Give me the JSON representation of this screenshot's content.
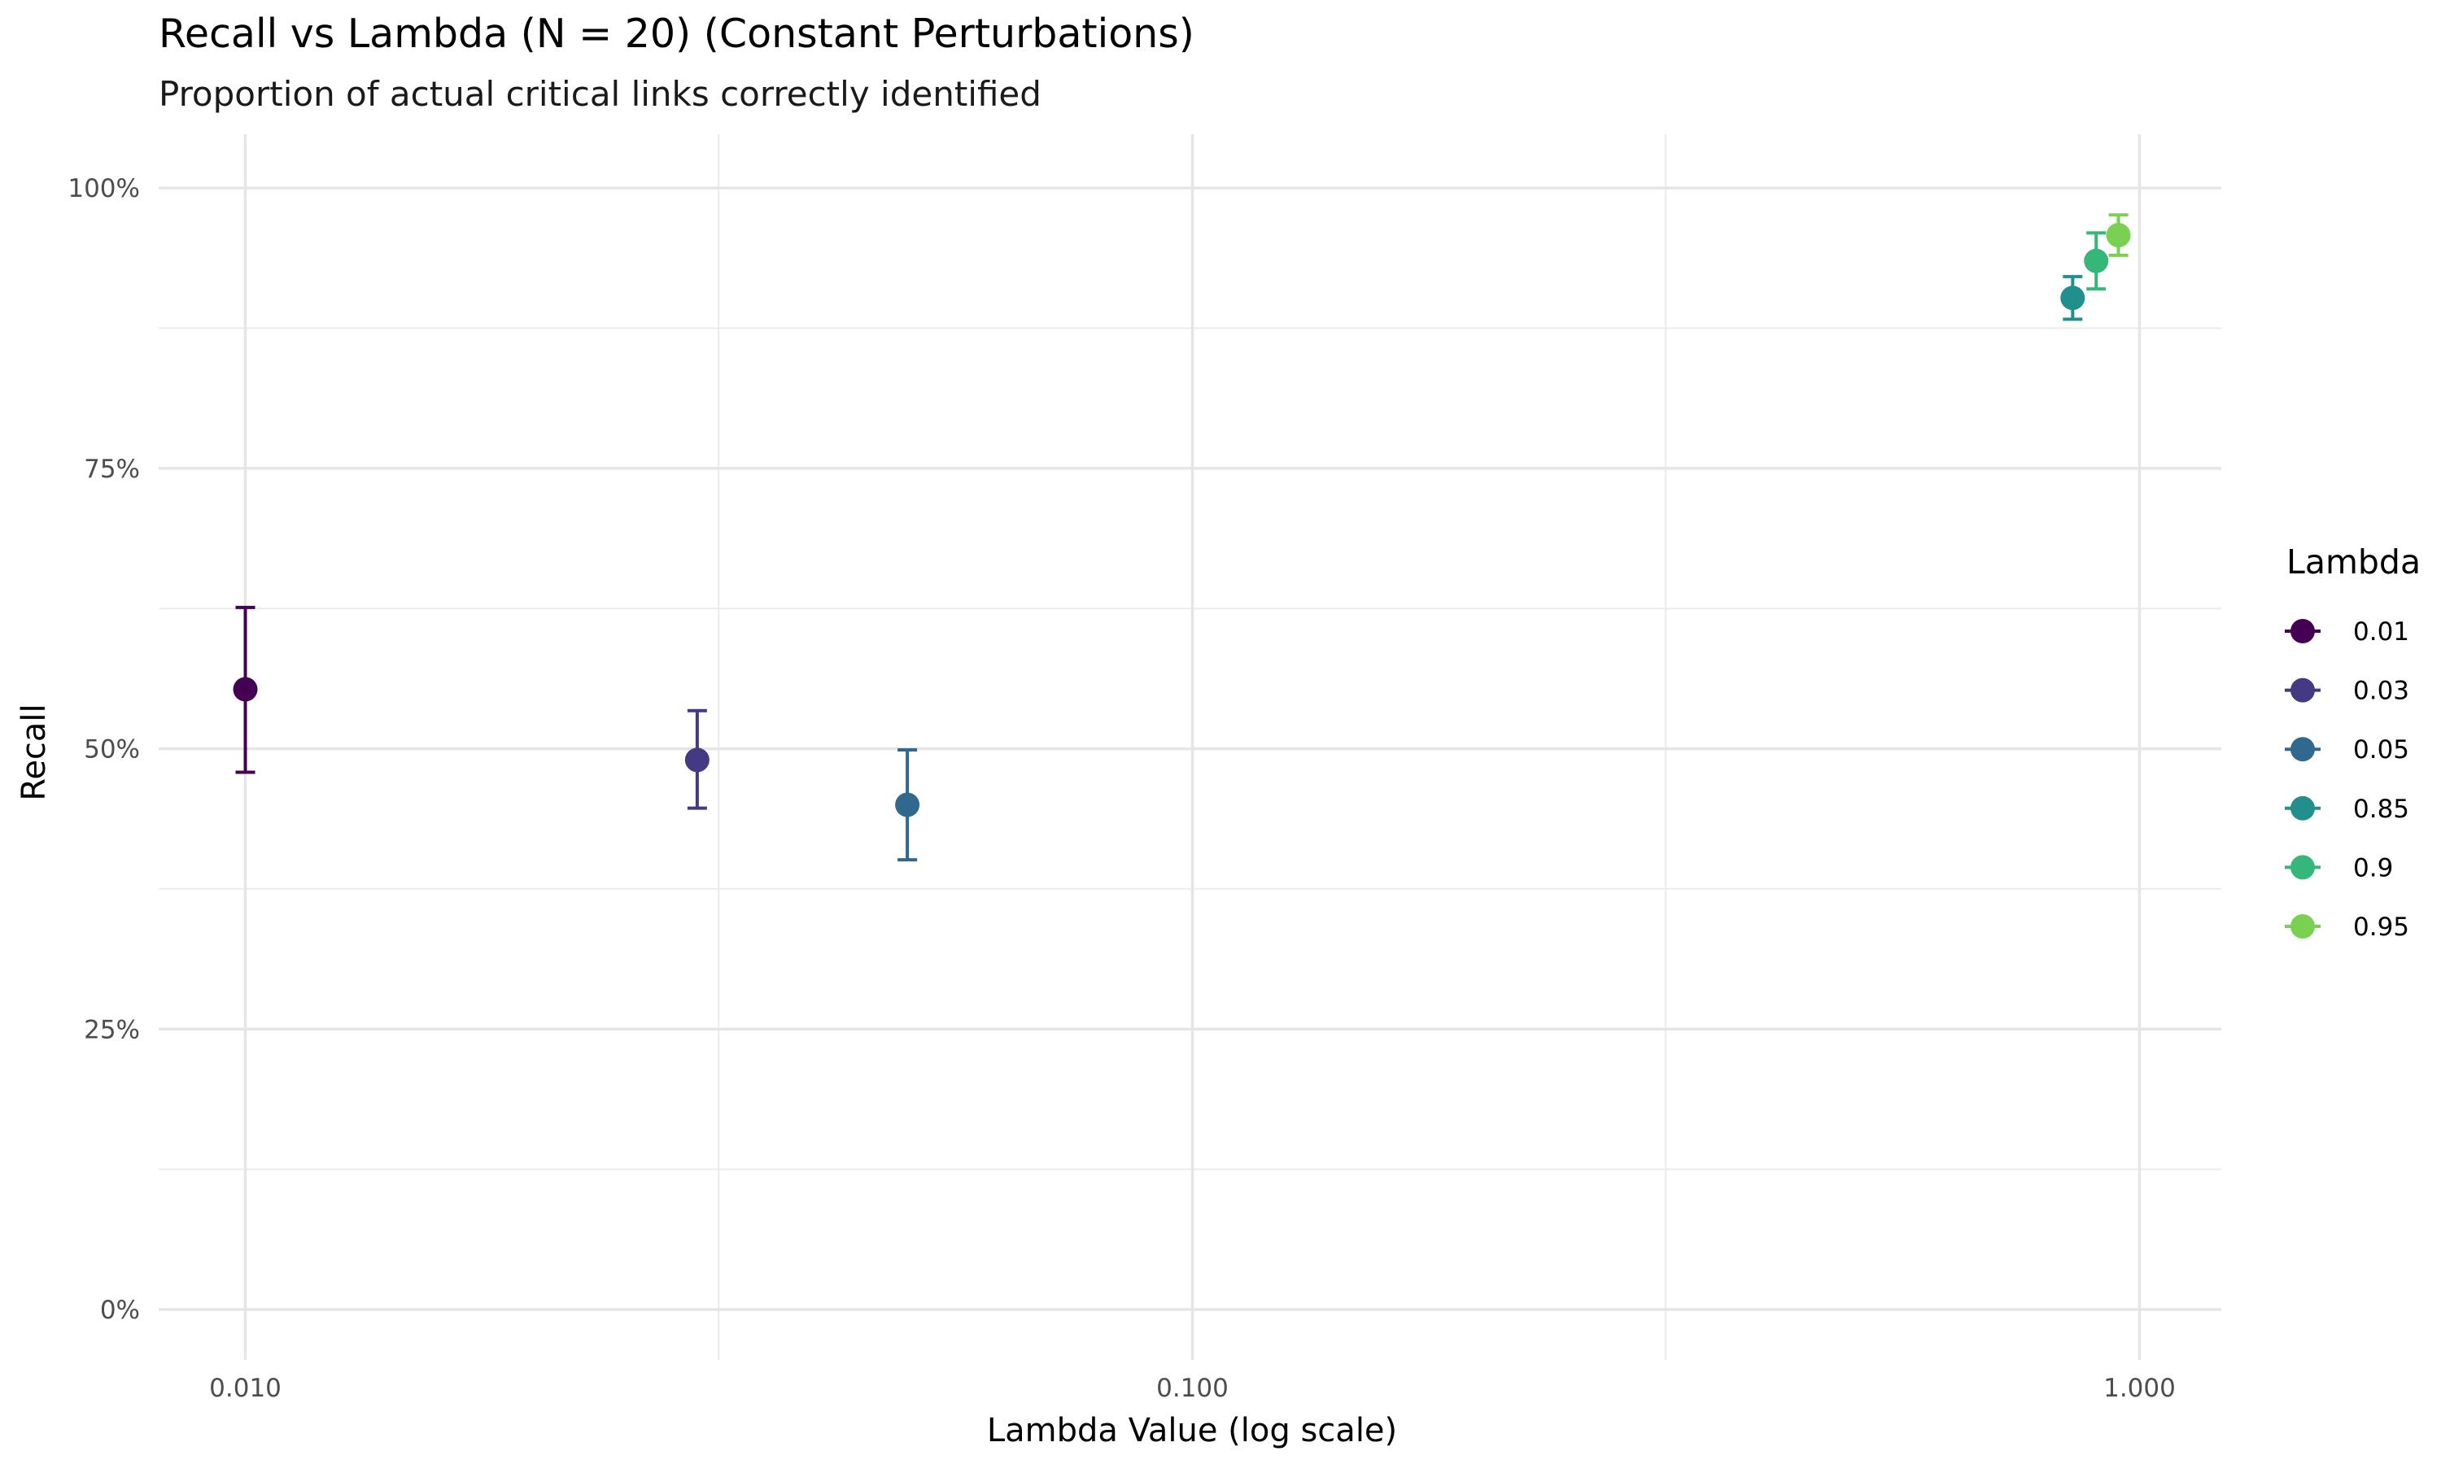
{
  "chart_data": {
    "type": "scatter",
    "title": "Recall vs Lambda (N = 20) (Constant Perturbations)",
    "subtitle": "Proportion of actual critical links correctly identified",
    "xlabel": "Lambda Value (log scale)",
    "ylabel": "Recall",
    "x_scale": "log10",
    "xlim": [
      0.0081,
      1.22
    ],
    "ylim": [
      -0.045,
      1.048
    ],
    "x_ticks": [
      {
        "value": 0.01,
        "label": "0.010"
      },
      {
        "value": 0.1,
        "label": "0.100"
      },
      {
        "value": 1.0,
        "label": "1.000"
      }
    ],
    "x_minor_ticks": [
      0.0316,
      0.316
    ],
    "y_ticks": [
      {
        "value": 0,
        "label": "0%"
      },
      {
        "value": 0.25,
        "label": "25%"
      },
      {
        "value": 0.5,
        "label": "50%"
      },
      {
        "value": 0.75,
        "label": "75%"
      },
      {
        "value": 1.0,
        "label": "100%"
      }
    ],
    "y_minor_ticks": [
      0.125,
      0.375,
      0.625,
      0.875
    ],
    "grid": true,
    "legend": {
      "title": "Lambda",
      "position": "right"
    },
    "series": [
      {
        "name": "0.01",
        "x": 0.01,
        "y": 0.553,
        "ymin": 0.479,
        "ymax": 0.626,
        "color": "#440154"
      },
      {
        "name": "0.03",
        "x": 0.03,
        "y": 0.49,
        "ymin": 0.447,
        "ymax": 0.534,
        "color": "#443A83"
      },
      {
        "name": "0.05",
        "x": 0.05,
        "y": 0.45,
        "ymin": 0.401,
        "ymax": 0.499,
        "color": "#31688E"
      },
      {
        "name": "0.85",
        "x": 0.85,
        "y": 0.902,
        "ymin": 0.883,
        "ymax": 0.921,
        "color": "#21908C"
      },
      {
        "name": "0.9",
        "x": 0.9,
        "y": 0.935,
        "ymin": 0.91,
        "ymax": 0.96,
        "color": "#35B779"
      },
      {
        "name": "0.95",
        "x": 0.95,
        "y": 0.958,
        "ymin": 0.94,
        "ymax": 0.976,
        "color": "#7AD151"
      }
    ]
  }
}
